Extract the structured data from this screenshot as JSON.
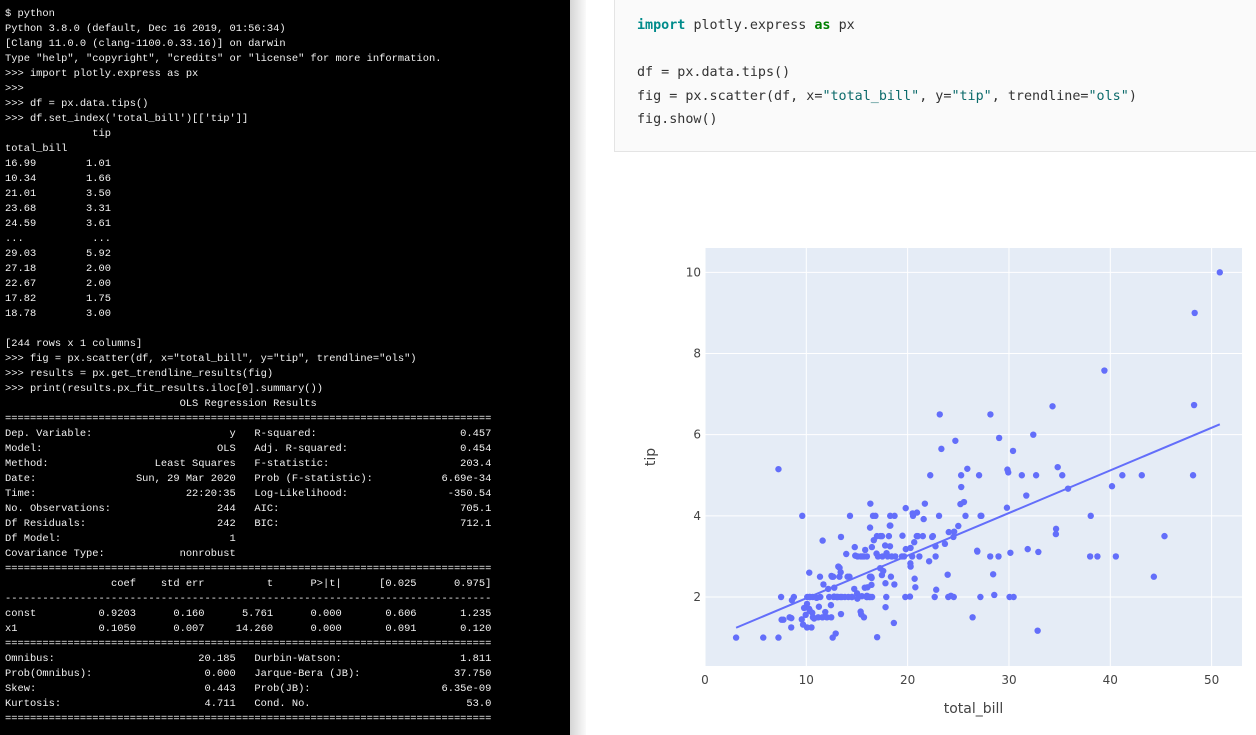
{
  "terminal": {
    "lines": [
      "$ python",
      "Python 3.8.0 (default, Dec 16 2019, 01:56:34)",
      "[Clang 11.0.0 (clang-1100.0.33.16)] on darwin",
      "Type \"help\", \"copyright\", \"credits\" or \"license\" for more information.",
      ">>> import plotly.express as px",
      ">>>",
      ">>> df = px.data.tips()",
      ">>> df.set_index('total_bill')[['tip']]",
      "              tip",
      "total_bill",
      "16.99        1.01",
      "10.34        1.66",
      "21.01        3.50",
      "23.68        3.31",
      "24.59        3.61",
      "...           ...",
      "29.03        5.92",
      "27.18        2.00",
      "22.67        2.00",
      "17.82        1.75",
      "18.78        3.00",
      "",
      "[244 rows x 1 columns]",
      ">>> fig = px.scatter(df, x=\"total_bill\", y=\"tip\", trendline=\"ols\")",
      ">>> results = px.get_trendline_results(fig)",
      ">>> print(results.px_fit_results.iloc[0].summary())",
      "                            OLS Regression Results",
      "==============================================================================",
      "Dep. Variable:                      y   R-squared:                       0.457",
      "Model:                            OLS   Adj. R-squared:                  0.454",
      "Method:                 Least Squares   F-statistic:                     203.4",
      "Date:                Sun, 29 Mar 2020   Prob (F-statistic):           6.69e-34",
      "Time:                        22:20:35   Log-Likelihood:                -350.54",
      "No. Observations:                 244   AIC:                             705.1",
      "Df Residuals:                     242   BIC:                             712.1",
      "Df Model:                           1",
      "Covariance Type:            nonrobust",
      "==============================================================================",
      "                 coef    std err          t      P>|t|      [0.025      0.975]",
      "------------------------------------------------------------------------------",
      "const          0.9203      0.160      5.761      0.000       0.606       1.235",
      "x1             0.1050      0.007     14.260      0.000       0.091       0.120",
      "==============================================================================",
      "Omnibus:                       20.185   Durbin-Watson:                   1.811",
      "Prob(Omnibus):                  0.000   Jarque-Bera (JB):               37.750",
      "Skew:                           0.443   Prob(JB):                     6.35e-09",
      "Kurtosis:                       4.711   Cond. No.                         53.0",
      "=============================================================================="
    ]
  },
  "code": {
    "kw_import": "import",
    "module": "plotly.express",
    "kw_as": "as",
    "alias": "px",
    "line2_prefix": "df = px.data.tips()",
    "line3_a": "fig = px.scatter(df, x=",
    "line3_s1": "\"total_bill\"",
    "line3_b": ", y=",
    "line3_s2": "\"tip\"",
    "line3_c": ", trendline=",
    "line3_s3": "\"ols\"",
    "line3_d": ")",
    "line4": "fig.show()"
  },
  "chart_data": {
    "type": "scatter",
    "xlabel": "total_bill",
    "ylabel": "tip",
    "xlim": [
      0,
      53
    ],
    "ylim": [
      0.3,
      10.6
    ],
    "xticks": [
      0,
      10,
      20,
      30,
      40,
      50
    ],
    "yticks": [
      2,
      4,
      6,
      8,
      10
    ],
    "grid": true,
    "colors": {
      "marker": "#636efa",
      "plot_bg": "#e5ecf6",
      "grid": "#ffffff",
      "tick_text": "#444444"
    },
    "trendline": {
      "intercept": 0.9203,
      "slope": 0.105,
      "x_range": [
        3.07,
        50.81
      ]
    },
    "points": [
      [
        3.07,
        1.0
      ],
      [
        5.75,
        1.0
      ],
      [
        7.25,
        1.0
      ],
      [
        7.25,
        5.15
      ],
      [
        7.51,
        2.0
      ],
      [
        7.56,
        1.44
      ],
      [
        7.74,
        1.44
      ],
      [
        8.35,
        1.5
      ],
      [
        8.51,
        1.25
      ],
      [
        8.52,
        1.48
      ],
      [
        8.58,
        1.92
      ],
      [
        8.77,
        2.0
      ],
      [
        9.55,
        1.45
      ],
      [
        9.6,
        4.0
      ],
      [
        9.68,
        1.32
      ],
      [
        9.78,
        1.73
      ],
      [
        9.94,
        1.56
      ],
      [
        10.07,
        1.25
      ],
      [
        10.07,
        1.83
      ],
      [
        10.09,
        2.0
      ],
      [
        10.27,
        1.71
      ],
      [
        10.29,
        2.6
      ],
      [
        10.33,
        1.67
      ],
      [
        10.33,
        2.0
      ],
      [
        10.34,
        1.66
      ],
      [
        10.34,
        2.0
      ],
      [
        10.51,
        1.25
      ],
      [
        10.59,
        1.61
      ],
      [
        10.63,
        2.0
      ],
      [
        10.65,
        1.5
      ],
      [
        10.77,
        1.47
      ],
      [
        11.02,
        1.98
      ],
      [
        11.17,
        1.5
      ],
      [
        11.24,
        1.76
      ],
      [
        11.35,
        2.5
      ],
      [
        11.38,
        2.0
      ],
      [
        11.59,
        1.5
      ],
      [
        11.61,
        3.39
      ],
      [
        11.69,
        2.31
      ],
      [
        11.87,
        1.63
      ],
      [
        12.03,
        1.5
      ],
      [
        12.16,
        2.2
      ],
      [
        12.26,
        2.0
      ],
      [
        12.43,
        1.8
      ],
      [
        12.46,
        1.5
      ],
      [
        12.48,
        2.52
      ],
      [
        12.54,
        2.5
      ],
      [
        12.6,
        1.0
      ],
      [
        12.66,
        2.5
      ],
      [
        12.69,
        2.0
      ],
      [
        12.74,
        2.01
      ],
      [
        12.76,
        2.23
      ],
      [
        12.9,
        1.1
      ],
      [
        13.0,
        2.0
      ],
      [
        13.03,
        2.0
      ],
      [
        13.13,
        2.0
      ],
      [
        13.16,
        2.75
      ],
      [
        13.27,
        2.5
      ],
      [
        13.28,
        2.72
      ],
      [
        13.37,
        2.0
      ],
      [
        13.39,
        2.61
      ],
      [
        13.42,
        1.58
      ],
      [
        13.42,
        3.48
      ],
      [
        13.51,
        2.0
      ],
      [
        13.81,
        2.0
      ],
      [
        13.94,
        3.06
      ],
      [
        14.07,
        2.5
      ],
      [
        14.15,
        2.0
      ],
      [
        14.26,
        2.5
      ],
      [
        14.31,
        4.0
      ],
      [
        14.48,
        2.0
      ],
      [
        14.52,
        2.0
      ],
      [
        14.73,
        2.2
      ],
      [
        14.78,
        3.23
      ],
      [
        14.83,
        3.02
      ],
      [
        15.01,
        2.09
      ],
      [
        15.04,
        1.96
      ],
      [
        15.06,
        3.0
      ],
      [
        15.36,
        1.64
      ],
      [
        15.38,
        3.0
      ],
      [
        15.42,
        1.57
      ],
      [
        15.48,
        2.02
      ],
      [
        15.53,
        3.0
      ],
      [
        15.69,
        1.5
      ],
      [
        15.69,
        3.0
      ],
      [
        15.77,
        2.23
      ],
      [
        15.81,
        3.16
      ],
      [
        15.95,
        2.0
      ],
      [
        15.98,
        2.03
      ],
      [
        15.98,
        3.0
      ],
      [
        16.0,
        2.0
      ],
      [
        16.04,
        2.24
      ],
      [
        16.21,
        2.0
      ],
      [
        16.27,
        2.5
      ],
      [
        16.29,
        3.71
      ],
      [
        16.31,
        2.0
      ],
      [
        16.32,
        4.3
      ],
      [
        16.4,
        2.5
      ],
      [
        16.43,
        2.3
      ],
      [
        16.45,
        2.47
      ],
      [
        16.47,
        3.23
      ],
      [
        16.49,
        2.0
      ],
      [
        16.58,
        4.0
      ],
      [
        16.66,
        3.4
      ],
      [
        16.82,
        4.0
      ],
      [
        16.93,
        3.07
      ],
      [
        16.97,
        3.5
      ],
      [
        16.99,
        1.01
      ],
      [
        17.07,
        3.0
      ],
      [
        17.29,
        2.71
      ],
      [
        17.31,
        3.5
      ],
      [
        17.46,
        2.54
      ],
      [
        17.47,
        3.5
      ],
      [
        17.51,
        3.0
      ],
      [
        17.59,
        2.64
      ],
      [
        17.78,
        3.27
      ],
      [
        17.81,
        2.34
      ],
      [
        17.82,
        1.75
      ],
      [
        17.89,
        2.0
      ],
      [
        17.92,
        3.08
      ],
      [
        18.04,
        3.0
      ],
      [
        18.15,
        3.5
      ],
      [
        18.24,
        3.76
      ],
      [
        18.26,
        3.25
      ],
      [
        18.28,
        4.0
      ],
      [
        18.29,
        3.76
      ],
      [
        18.35,
        2.5
      ],
      [
        18.43,
        3.0
      ],
      [
        18.64,
        1.36
      ],
      [
        18.69,
        2.31
      ],
      [
        18.71,
        4.0
      ],
      [
        18.78,
        3.0
      ],
      [
        19.44,
        3.0
      ],
      [
        19.49,
        3.51
      ],
      [
        19.65,
        3.0
      ],
      [
        19.77,
        2.0
      ],
      [
        19.81,
        4.19
      ],
      [
        19.82,
        3.18
      ],
      [
        20.23,
        2.01
      ],
      [
        20.27,
        2.83
      ],
      [
        20.29,
        2.75
      ],
      [
        20.29,
        3.21
      ],
      [
        20.45,
        3.0
      ],
      [
        20.49,
        4.06
      ],
      [
        20.53,
        4.0
      ],
      [
        20.65,
        3.35
      ],
      [
        20.69,
        2.45
      ],
      [
        20.76,
        2.24
      ],
      [
        20.9,
        3.5
      ],
      [
        20.92,
        4.08
      ],
      [
        21.01,
        3.5
      ],
      [
        21.16,
        3.0
      ],
      [
        21.5,
        3.5
      ],
      [
        21.58,
        3.92
      ],
      [
        21.7,
        4.3
      ],
      [
        22.12,
        2.88
      ],
      [
        22.23,
        5.0
      ],
      [
        22.42,
        3.48
      ],
      [
        22.49,
        3.5
      ],
      [
        22.67,
        2.0
      ],
      [
        22.75,
        3.25
      ],
      [
        22.76,
        3.0
      ],
      [
        22.82,
        2.18
      ],
      [
        23.1,
        4.0
      ],
      [
        23.17,
        6.5
      ],
      [
        23.33,
        5.65
      ],
      [
        23.68,
        3.31
      ],
      [
        23.95,
        2.55
      ],
      [
        24.01,
        2.0
      ],
      [
        24.06,
        3.6
      ],
      [
        24.27,
        2.03
      ],
      [
        24.52,
        3.48
      ],
      [
        24.55,
        2.0
      ],
      [
        24.59,
        3.61
      ],
      [
        24.71,
        5.85
      ],
      [
        25.0,
        3.75
      ],
      [
        25.21,
        4.29
      ],
      [
        25.28,
        5.0
      ],
      [
        25.29,
        4.71
      ],
      [
        25.56,
        4.34
      ],
      [
        25.71,
        4.0
      ],
      [
        25.89,
        5.16
      ],
      [
        26.41,
        1.5
      ],
      [
        26.86,
        3.14
      ],
      [
        26.88,
        3.12
      ],
      [
        27.05,
        5.0
      ],
      [
        27.18,
        2.0
      ],
      [
        27.2,
        4.0
      ],
      [
        27.28,
        4.0
      ],
      [
        28.15,
        3.0
      ],
      [
        28.17,
        6.5
      ],
      [
        28.44,
        2.56
      ],
      [
        28.55,
        2.05
      ],
      [
        28.97,
        3.0
      ],
      [
        29.03,
        5.92
      ],
      [
        29.8,
        4.2
      ],
      [
        29.85,
        5.14
      ],
      [
        29.93,
        5.07
      ],
      [
        30.06,
        2.0
      ],
      [
        30.14,
        3.09
      ],
      [
        30.4,
        5.6
      ],
      [
        30.46,
        2.0
      ],
      [
        31.27,
        5.0
      ],
      [
        31.71,
        4.5
      ],
      [
        31.85,
        3.18
      ],
      [
        32.4,
        6.0
      ],
      [
        32.68,
        5.0
      ],
      [
        32.83,
        1.17
      ],
      [
        32.9,
        3.11
      ],
      [
        34.3,
        6.7
      ],
      [
        34.63,
        3.55
      ],
      [
        34.65,
        3.68
      ],
      [
        34.81,
        5.2
      ],
      [
        35.26,
        5.0
      ],
      [
        35.83,
        4.67
      ],
      [
        38.01,
        3.0
      ],
      [
        38.07,
        4.0
      ],
      [
        38.73,
        3.0
      ],
      [
        39.42,
        7.58
      ],
      [
        40.17,
        4.73
      ],
      [
        40.55,
        3.0
      ],
      [
        41.19,
        5.0
      ],
      [
        43.11,
        5.0
      ],
      [
        44.3,
        2.5
      ],
      [
        45.35,
        3.5
      ],
      [
        48.17,
        5.0
      ],
      [
        48.27,
        6.73
      ],
      [
        48.33,
        9.0
      ],
      [
        50.81,
        10.0
      ]
    ]
  }
}
